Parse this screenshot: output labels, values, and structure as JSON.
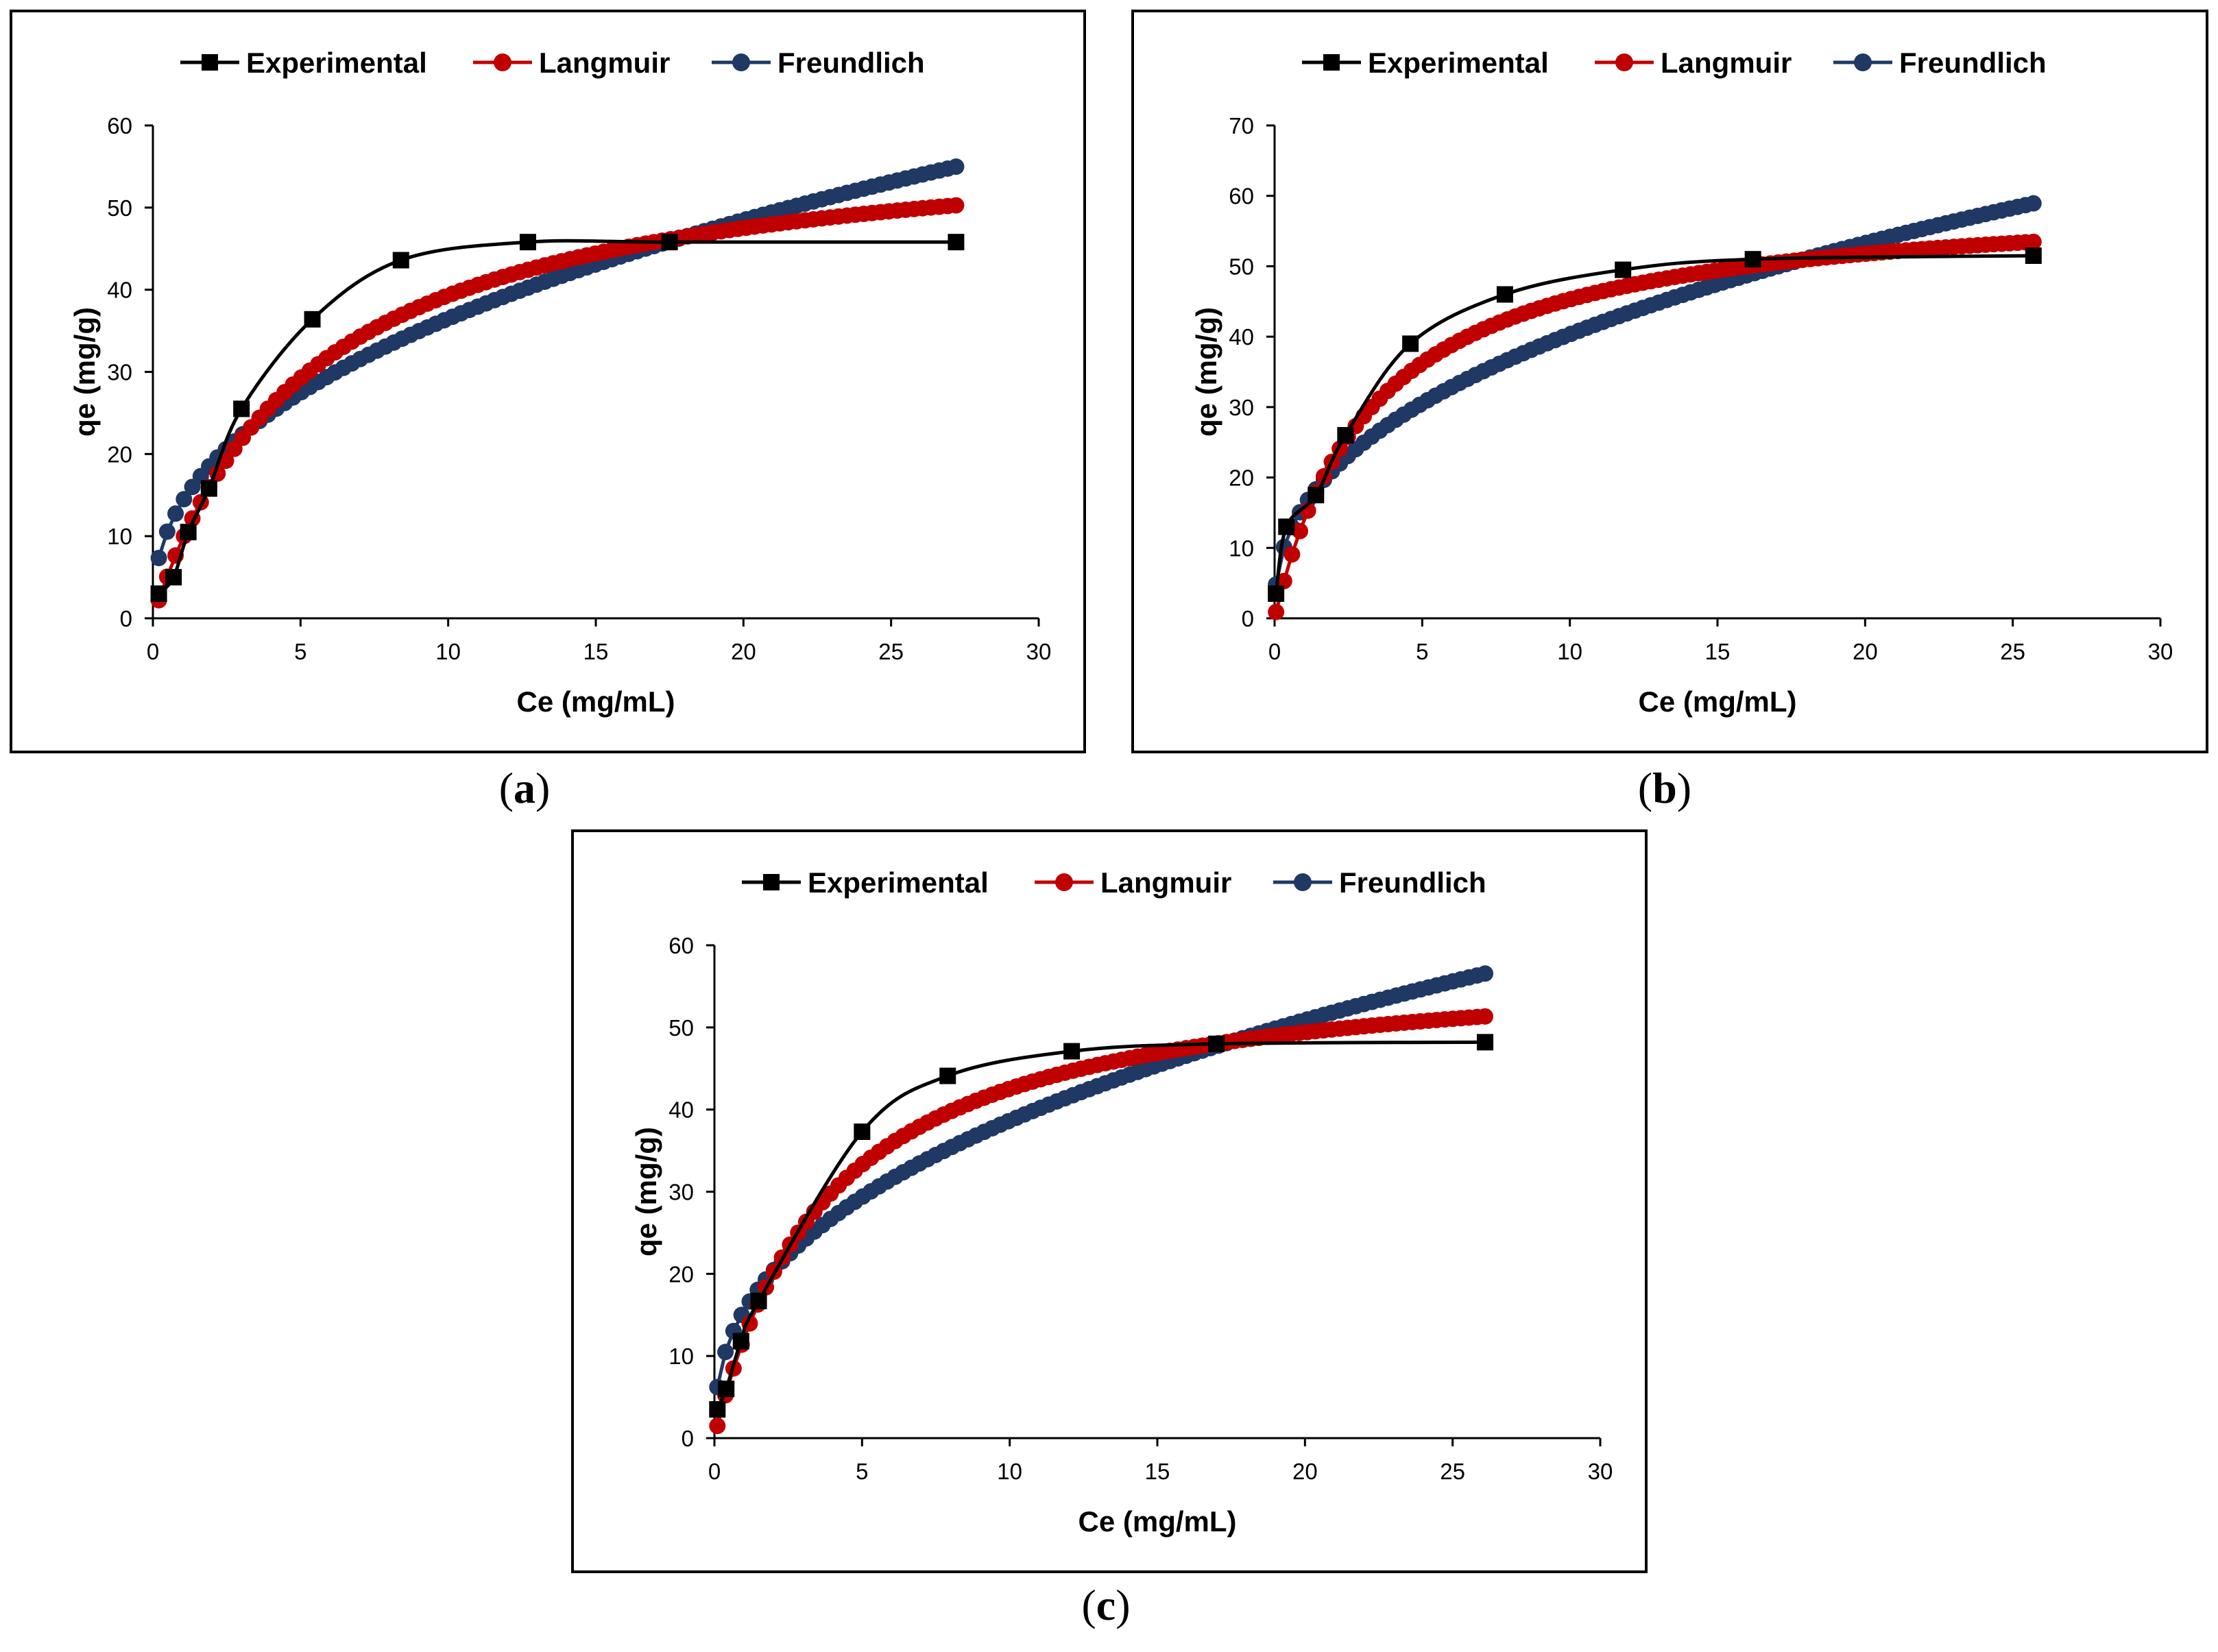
{
  "colors": {
    "experimental": "#000000",
    "langmuir": "#C00000",
    "freundlich": "#1F3864",
    "axis": "#000000",
    "panel_border": "#000000"
  },
  "captions": {
    "a": {
      "open": "(",
      "letter": "a",
      "close": ")"
    },
    "b": {
      "open": "(",
      "letter": "b",
      "close": ")"
    },
    "c": {
      "open": "(",
      "letter": "c",
      "close": ")"
    }
  },
  "chart_data": [
    {
      "id": "a",
      "type": "line",
      "xlabel": "Ce (mg/mL)",
      "ylabel": "qe (mg/g)",
      "xlim": [
        0,
        30
      ],
      "ylim": [
        0,
        60
      ],
      "xticks": [
        0,
        5,
        10,
        15,
        20,
        25,
        30
      ],
      "yticks": [
        0,
        10,
        20,
        30,
        40,
        50,
        60
      ],
      "legend_position": "top",
      "series": [
        {
          "name": "Experimental",
          "marker": "square",
          "x": [
            0.2,
            0.7,
            1.2,
            1.9,
            3.0,
            5.4,
            8.4,
            12.7,
            17.5,
            27.2
          ],
          "y": [
            3,
            5,
            10.5,
            15.8,
            25.5,
            36.4,
            43.6,
            45.8,
            45.8,
            45.8
          ]
        },
        {
          "name": "Langmuir",
          "marker": "circle",
          "model": "langmuir",
          "qmax": 60.0,
          "KL": 0.19,
          "xrange": [
            0.2,
            27.2
          ]
        },
        {
          "name": "Freundlich",
          "marker": "circle",
          "model": "freundlich",
          "KF": 14.2,
          "n": 2.44,
          "xrange": [
            0.2,
            27.2
          ]
        }
      ]
    },
    {
      "id": "b",
      "type": "line",
      "xlabel": "Ce (mg/mL)",
      "ylabel": "qe (mg/g)",
      "xlim": [
        0,
        30
      ],
      "ylim": [
        0,
        70
      ],
      "xticks": [
        0,
        5,
        10,
        15,
        20,
        25,
        30
      ],
      "yticks": [
        0,
        10,
        20,
        30,
        40,
        50,
        60,
        70
      ],
      "legend_position": "top",
      "series": [
        {
          "name": "Experimental",
          "marker": "square",
          "x": [
            0.05,
            0.4,
            1.4,
            2.4,
            4.6,
            7.8,
            11.8,
            16.2,
            25.7
          ],
          "y": [
            3.5,
            13,
            17.5,
            26,
            39,
            46,
            49.5,
            51,
            51.5
          ]
        },
        {
          "name": "Langmuir",
          "marker": "circle",
          "model": "langmuir",
          "qmax": 60.4,
          "KL": 0.3,
          "xrange": [
            0.05,
            25.7
          ]
        },
        {
          "name": "Freundlich",
          "marker": "circle",
          "model": "freundlich",
          "KF": 16.0,
          "n": 2.49,
          "xrange": [
            0.05,
            25.7
          ]
        }
      ]
    },
    {
      "id": "c",
      "type": "line",
      "xlabel": "Ce (mg/mL)",
      "ylabel": "qe (mg/g)",
      "xlim": [
        0,
        30
      ],
      "ylim": [
        0,
        60
      ],
      "xticks": [
        0,
        5,
        10,
        15,
        20,
        25,
        30
      ],
      "yticks": [
        0,
        10,
        20,
        30,
        40,
        50,
        60
      ],
      "legend_position": "top",
      "series": [
        {
          "name": "Experimental",
          "marker": "square",
          "x": [
            0.1,
            0.4,
            0.9,
            1.5,
            5.0,
            7.9,
            12.1,
            17.0,
            26.1
          ],
          "y": [
            3.5,
            6,
            11.8,
            16.7,
            37.3,
            44.1,
            47.1,
            48,
            48.2
          ]
        },
        {
          "name": "Langmuir",
          "marker": "circle",
          "model": "langmuir",
          "qmax": 58.9,
          "KL": 0.26,
          "xrange": [
            0.1,
            26.1
          ]
        },
        {
          "name": "Freundlich",
          "marker": "circle",
          "model": "freundlich",
          "KF": 15.5,
          "n": 2.52,
          "xrange": [
            0.1,
            26.1
          ]
        }
      ]
    }
  ]
}
